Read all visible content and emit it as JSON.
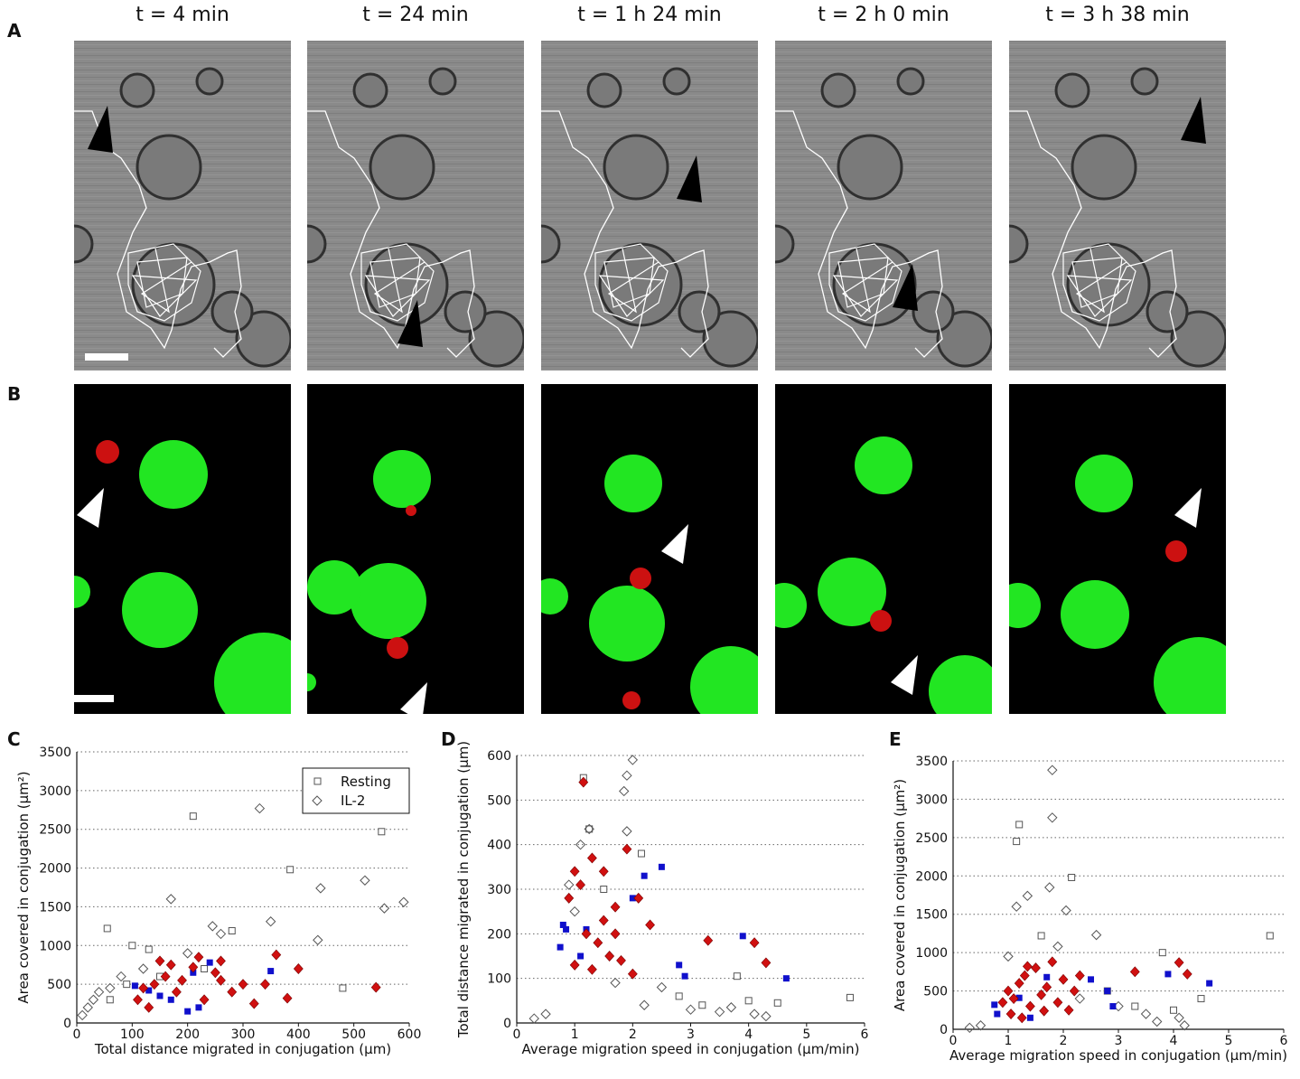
{
  "panel_labels": [
    "A",
    "B",
    "C",
    "D",
    "E"
  ],
  "time_labels": [
    "t = 4 min",
    "t = 24 min",
    "t = 1 h 24 min",
    "t = 2 h 0 min",
    "t = 3 h 38 min"
  ],
  "legend": {
    "resting": "Resting",
    "il2": "IL-2"
  },
  "colors": {
    "resting_highlight": "#1010cc",
    "il2_highlight": "#d01010",
    "gray_marker": "#555555",
    "fluor_green": "#22e622",
    "fluor_red": "#cc1111"
  },
  "chart_data": [
    {
      "id": "C",
      "type": "scatter",
      "xlabel": "Total distance migrated in conjugation (μm)",
      "ylabel": "Area covered in conjugation (μm²)",
      "xlim": [
        0,
        600
      ],
      "ylim": [
        0,
        3500
      ],
      "xticks": [
        0,
        100,
        200,
        300,
        400,
        500,
        600
      ],
      "yticks": [
        0,
        500,
        1000,
        1500,
        2000,
        2500,
        3000,
        3500
      ],
      "grid": "horizontal dotted",
      "legend_position": "top-right",
      "series": [
        {
          "name": "Resting",
          "marker": "square-open",
          "points": [
            [
              55,
              1220
            ],
            [
              100,
              1000
            ],
            [
              130,
              950
            ],
            [
              210,
              2670
            ],
            [
              280,
              1190
            ],
            [
              385,
              1980
            ],
            [
              550,
              2470
            ],
            [
              480,
              450
            ],
            [
              60,
              300
            ],
            [
              90,
              500
            ],
            [
              150,
              600
            ],
            [
              230,
              700
            ]
          ]
        },
        {
          "name": "IL-2",
          "marker": "diamond-open",
          "points": [
            [
              170,
              1600
            ],
            [
              245,
              1250
            ],
            [
              330,
              2770
            ],
            [
              350,
              1310
            ],
            [
              440,
              1740
            ],
            [
              520,
              1840
            ],
            [
              555,
              1480
            ],
            [
              590,
              1560
            ],
            [
              435,
              1070
            ],
            [
              260,
              1150
            ],
            [
              200,
              900
            ],
            [
              120,
              700
            ],
            [
              80,
              600
            ],
            [
              40,
              400
            ],
            [
              20,
              200
            ],
            [
              10,
              100
            ],
            [
              30,
              300
            ],
            [
              60,
              450
            ]
          ]
        },
        {
          "name": "",
          "marker": "square-filled-blue",
          "points": [
            [
              105,
              480
            ],
            [
              130,
              420
            ],
            [
              150,
              350
            ],
            [
              170,
              300
            ],
            [
              210,
              650
            ],
            [
              220,
              200
            ],
            [
              240,
              780
            ],
            [
              350,
              670
            ],
            [
              200,
              150
            ]
          ]
        },
        {
          "name": "",
          "marker": "diamond-filled-red",
          "points": [
            [
              110,
              300
            ],
            [
              120,
              450
            ],
            [
              140,
              500
            ],
            [
              160,
              600
            ],
            [
              180,
              400
            ],
            [
              190,
              550
            ],
            [
              210,
              720
            ],
            [
              230,
              300
            ],
            [
              250,
              650
            ],
            [
              260,
              550
            ],
            [
              280,
              400
            ],
            [
              300,
              500
            ],
            [
              320,
              250
            ],
            [
              340,
              500
            ],
            [
              360,
              880
            ],
            [
              380,
              320
            ],
            [
              400,
              700
            ],
            [
              540,
              460
            ],
            [
              130,
              200
            ],
            [
              170,
              750
            ],
            [
              150,
              800
            ],
            [
              220,
              850
            ],
            [
              260,
              800
            ]
          ]
        }
      ]
    },
    {
      "id": "D",
      "type": "scatter",
      "xlabel": "Average migration speed in conjugation (μm/min)",
      "ylabel": "Total distance migrated in conjugation (μm)",
      "xlim": [
        0,
        6
      ],
      "ylim": [
        0,
        600
      ],
      "xticks": [
        0,
        1,
        2,
        3,
        4,
        5,
        6
      ],
      "yticks": [
        0,
        100,
        200,
        300,
        400,
        500,
        600
      ],
      "grid": "horizontal dotted",
      "series": [
        {
          "name": "Resting",
          "marker": "square-open",
          "points": [
            [
              1.15,
              550
            ],
            [
              1.25,
              435
            ],
            [
              2.15,
              380
            ],
            [
              1.5,
              300
            ],
            [
              3.8,
              105
            ],
            [
              5.75,
              57
            ],
            [
              4.5,
              45
            ],
            [
              3.2,
              40
            ],
            [
              2.8,
              60
            ],
            [
              4.0,
              50
            ]
          ]
        },
        {
          "name": "IL-2",
          "marker": "diamond-open",
          "points": [
            [
              2.0,
              590
            ],
            [
              1.9,
              555
            ],
            [
              1.85,
              520
            ],
            [
              1.9,
              430
            ],
            [
              1.25,
              435
            ],
            [
              1.1,
              400
            ],
            [
              0.9,
              310
            ],
            [
              1.0,
              250
            ],
            [
              3.0,
              30
            ],
            [
              3.5,
              25
            ],
            [
              4.1,
              20
            ],
            [
              2.5,
              80
            ],
            [
              1.7,
              90
            ],
            [
              0.5,
              20
            ],
            [
              0.3,
              10
            ],
            [
              2.2,
              40
            ],
            [
              4.3,
              15
            ],
            [
              3.7,
              35
            ]
          ]
        },
        {
          "name": "",
          "marker": "square-filled-blue",
          "points": [
            [
              0.8,
              220
            ],
            [
              0.85,
              210
            ],
            [
              0.75,
              170
            ],
            [
              1.2,
              210
            ],
            [
              1.1,
              150
            ],
            [
              2.0,
              280
            ],
            [
              2.2,
              330
            ],
            [
              2.5,
              350
            ],
            [
              2.8,
              130
            ],
            [
              3.9,
              195
            ],
            [
              4.65,
              100
            ],
            [
              2.9,
              105
            ]
          ]
        },
        {
          "name": "",
          "marker": "diamond-filled-red",
          "points": [
            [
              1.15,
              540
            ],
            [
              1.0,
              340
            ],
            [
              1.1,
              310
            ],
            [
              1.3,
              370
            ],
            [
              1.5,
              340
            ],
            [
              1.7,
              260
            ],
            [
              1.9,
              390
            ],
            [
              2.1,
              280
            ],
            [
              2.3,
              220
            ],
            [
              1.2,
              200
            ],
            [
              1.4,
              180
            ],
            [
              1.6,
              150
            ],
            [
              1.8,
              140
            ],
            [
              1.0,
              130
            ],
            [
              1.3,
              120
            ],
            [
              2.0,
              110
            ],
            [
              3.3,
              185
            ],
            [
              4.1,
              180
            ],
            [
              4.3,
              135
            ],
            [
              1.5,
              230
            ],
            [
              0.9,
              280
            ],
            [
              1.7,
              200
            ]
          ]
        }
      ]
    },
    {
      "id": "E",
      "type": "scatter",
      "xlabel": "Average migration speed in conjugation (μm/min)",
      "ylabel": "Area covered in conjugation (μm²)",
      "xlim": [
        0,
        6
      ],
      "ylim": [
        0,
        3500
      ],
      "xticks": [
        0,
        1,
        2,
        3,
        4,
        5,
        6
      ],
      "yticks": [
        0,
        500,
        1000,
        1500,
        2000,
        2500,
        3000,
        3500
      ],
      "grid": "horizontal dotted",
      "series": [
        {
          "name": "Resting",
          "marker": "square-open",
          "points": [
            [
              1.15,
              2450
            ],
            [
              1.2,
              2670
            ],
            [
              2.15,
              1980
            ],
            [
              1.6,
              1220
            ],
            [
              3.8,
              1000
            ],
            [
              5.75,
              1220
            ],
            [
              4.5,
              400
            ],
            [
              3.3,
              300
            ],
            [
              2.8,
              500
            ],
            [
              4.0,
              250
            ]
          ]
        },
        {
          "name": "IL-2",
          "marker": "diamond-open",
          "points": [
            [
              1.8,
              3380
            ],
            [
              1.8,
              2760
            ],
            [
              1.75,
              1850
            ],
            [
              1.35,
              1740
            ],
            [
              1.15,
              1600
            ],
            [
              2.05,
              1550
            ],
            [
              2.6,
              1230
            ],
            [
              1.9,
              1080
            ],
            [
              1.0,
              950
            ],
            [
              3.5,
              200
            ],
            [
              4.1,
              150
            ],
            [
              3.0,
              300
            ],
            [
              0.5,
              50
            ],
            [
              0.3,
              20
            ],
            [
              2.3,
              400
            ],
            [
              3.7,
              100
            ],
            [
              4.2,
              50
            ]
          ]
        },
        {
          "name": "",
          "marker": "square-filled-blue",
          "points": [
            [
              0.75,
              320
            ],
            [
              0.8,
              200
            ],
            [
              1.2,
              410
            ],
            [
              1.7,
              680
            ],
            [
              2.5,
              650
            ],
            [
              2.8,
              500
            ],
            [
              3.9,
              720
            ],
            [
              4.65,
              600
            ],
            [
              2.9,
              300
            ],
            [
              1.4,
              150
            ]
          ]
        },
        {
          "name": "",
          "marker": "diamond-filled-red",
          "points": [
            [
              1.0,
              500
            ],
            [
              1.1,
              400
            ],
            [
              1.2,
              600
            ],
            [
              1.3,
              700
            ],
            [
              1.4,
              300
            ],
            [
              1.5,
              800
            ],
            [
              1.6,
              450
            ],
            [
              1.7,
              550
            ],
            [
              1.8,
              880
            ],
            [
              1.9,
              350
            ],
            [
              2.0,
              650
            ],
            [
              2.1,
              250
            ],
            [
              2.2,
              500
            ],
            [
              1.05,
              200
            ],
            [
              1.25,
              150
            ],
            [
              3.3,
              750
            ],
            [
              4.1,
              870
            ],
            [
              4.25,
              720
            ],
            [
              0.9,
              350
            ],
            [
              1.35,
              820
            ],
            [
              1.65,
              240
            ],
            [
              2.3,
              700
            ]
          ]
        }
      ]
    }
  ]
}
